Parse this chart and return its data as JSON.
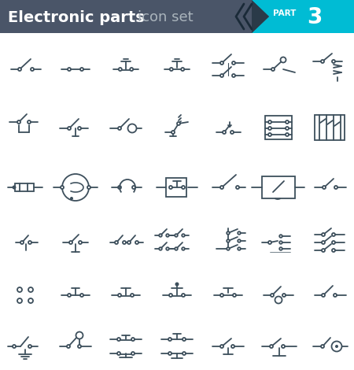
{
  "title": "Electronic parts",
  "subtitle": "icon set",
  "part_label": "PART",
  "part_number": "3",
  "header_bg": "#4a5568",
  "header_accent": "#00bcd4",
  "line_color": "#3d4f5c",
  "bg_color": "#ffffff",
  "title_color": "#ffffff",
  "subtitle_color": "#aab4bc",
  "part_color": "#ffffff",
  "chevron_dark": "#2a3a48"
}
